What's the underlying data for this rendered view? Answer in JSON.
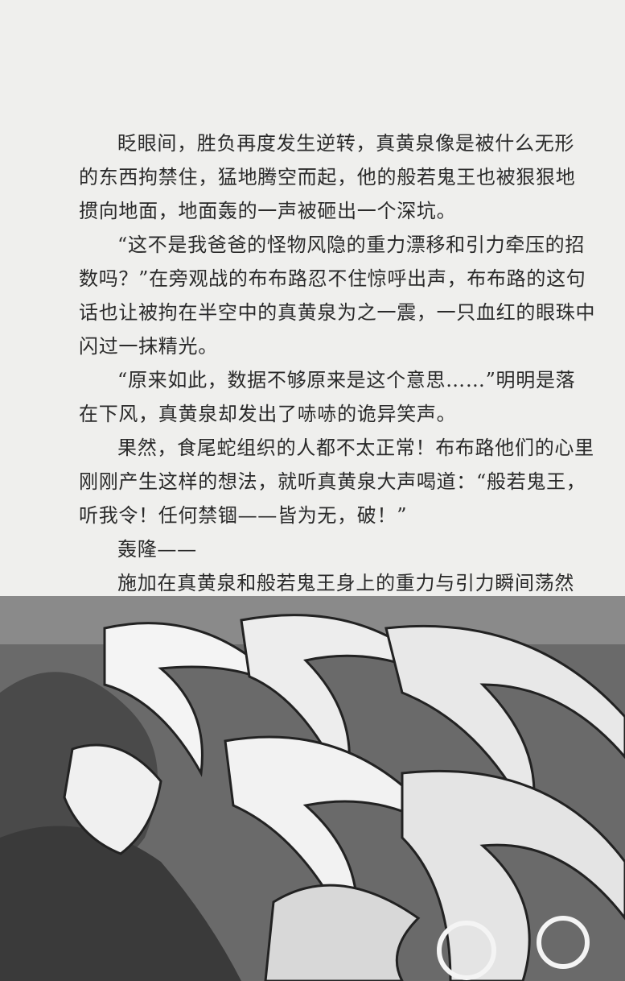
{
  "paragraphs": [
    {
      "lines": [
        "眨眼间，胜负再度发生逆转，真黄泉像是被什么无形",
        "的东西拘禁住，猛地腾空而起，他的般若鬼王也被狠狠地",
        "掼向地面，地面轰的一声被砸出一个深坑。"
      ]
    },
    {
      "lines": [
        "“这不是我爸爸的怪物风隐的重力漂移和引力牵压的招",
        "数吗？”在旁观战的布布路忍不住惊呼出声，布布路的这句",
        "话也让被拘在半空中的真黄泉为之一震，一只血红的眼珠中",
        "闪过一抹精光。"
      ]
    },
    {
      "lines": [
        "“原来如此，数据不够原来是这个意思……”明明是落",
        "在下风，真黄泉却发出了哧哧的诡异笑声。"
      ]
    },
    {
      "lines": [
        "果然，食尾蛇组织的人都不太正常！布布路他们的心里",
        "刚刚产生这样的想法，就听真黄泉大声喝道：“般若鬼王，",
        "听我令！任何禁锢——皆为无，破！”"
      ]
    },
    {
      "lines": [
        "轰隆——"
      ]
    },
    {
      "lines": [
        "施加在真黄泉和般若鬼王身上的重力与引力瞬间荡然"
      ]
    }
  ]
}
